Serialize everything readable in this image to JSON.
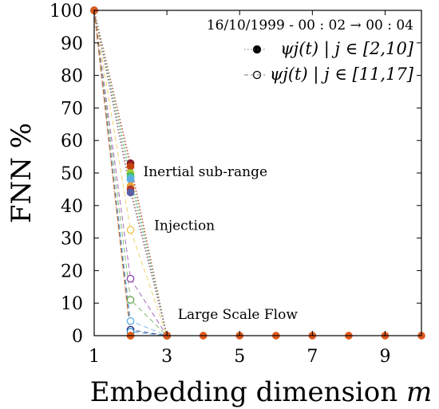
{
  "chart_data": {
    "type": "line",
    "title": "",
    "xlabel": "Embedding dimension",
    "xlabel_var": "m",
    "ylabel": "FNN %",
    "xlim": [
      1,
      10
    ],
    "ylim": [
      0,
      100
    ],
    "x_ticks": [
      1,
      3,
      5,
      7,
      9
    ],
    "y_ticks": [
      0,
      10,
      20,
      30,
      40,
      50,
      60,
      70,
      80,
      90,
      100
    ],
    "grid": false,
    "legend": {
      "placement": "top-right",
      "title": "16/10/1999 - 00 : 02 → 00 : 04",
      "entries": [
        {
          "label": "ψj(t) | j ∈ [2,10]",
          "marker": "filled"
        },
        {
          "label": "ψj(t) | j ∈ [11,17]",
          "marker": "open"
        }
      ]
    },
    "annotations": [
      {
        "text": "Inertial sub-range",
        "x": 2.35,
        "y": 49
      },
      {
        "text": "Injection",
        "x": 2.65,
        "y": 32.5
      },
      {
        "text": "Large Scale Flow",
        "x": 3.3,
        "y": 5.2
      }
    ],
    "series": [
      {
        "group": "filled",
        "color": "#8b1a2b",
        "values": [
          [
            1,
            100
          ],
          [
            2,
            53
          ],
          [
            3,
            0
          ]
        ]
      },
      {
        "group": "filled",
        "color": "#c1440e",
        "values": [
          [
            1,
            100
          ],
          [
            2,
            52
          ],
          [
            3,
            0
          ]
        ]
      },
      {
        "group": "filled",
        "color": "#9acd32",
        "values": [
          [
            1,
            100
          ],
          [
            2,
            50
          ],
          [
            3,
            0
          ]
        ]
      },
      {
        "group": "filled",
        "color": "#3cb371",
        "values": [
          [
            1,
            100
          ],
          [
            2,
            49
          ],
          [
            3,
            0
          ]
        ]
      },
      {
        "group": "filled",
        "color": "#48c9b0",
        "values": [
          [
            1,
            100
          ],
          [
            2,
            48.5
          ],
          [
            3,
            0
          ]
        ]
      },
      {
        "group": "filled",
        "color": "#5dade2",
        "values": [
          [
            1,
            100
          ],
          [
            2,
            48
          ],
          [
            3,
            0
          ]
        ]
      },
      {
        "group": "filled",
        "color": "#e8a33c",
        "values": [
          [
            1,
            100
          ],
          [
            2,
            46
          ],
          [
            3,
            0
          ]
        ]
      },
      {
        "group": "filled",
        "color": "#b03a2e",
        "values": [
          [
            1,
            100
          ],
          [
            2,
            45
          ],
          [
            3,
            0
          ]
        ]
      },
      {
        "group": "filled",
        "color": "#5b5ea6",
        "values": [
          [
            1,
            100
          ],
          [
            2,
            44
          ],
          [
            3,
            0
          ]
        ]
      },
      {
        "group": "open",
        "color": "#e8c84a",
        "values": [
          [
            1,
            100
          ],
          [
            2,
            32.5
          ],
          [
            3,
            0
          ]
        ]
      },
      {
        "group": "open",
        "color": "#8e44ad",
        "values": [
          [
            1,
            100
          ],
          [
            2,
            17.5
          ],
          [
            3,
            0
          ]
        ]
      },
      {
        "group": "open",
        "color": "#6aa84f",
        "values": [
          [
            1,
            100
          ],
          [
            2,
            11
          ],
          [
            3,
            0
          ]
        ]
      },
      {
        "group": "open",
        "color": "#5dade2",
        "values": [
          [
            1,
            100
          ],
          [
            2,
            4.5
          ],
          [
            3,
            0
          ]
        ]
      },
      {
        "group": "open",
        "color": "#1a237e",
        "values": [
          [
            1,
            100
          ],
          [
            2,
            1.8
          ],
          [
            3,
            0
          ]
        ]
      },
      {
        "group": "open",
        "color": "#2e86c1",
        "values": [
          [
            1,
            100
          ],
          [
            2,
            1.2
          ],
          [
            3,
            0
          ]
        ]
      },
      {
        "group": "open",
        "color": "#e67e22",
        "values": [
          [
            1,
            100
          ],
          [
            2,
            0
          ],
          [
            3,
            0
          ]
        ]
      },
      {
        "group": "filled",
        "color": "#e05a1e",
        "values": [
          [
            1,
            100
          ],
          [
            2,
            0
          ],
          [
            3,
            0
          ],
          [
            4,
            0
          ],
          [
            5,
            0
          ],
          [
            6,
            0
          ],
          [
            7,
            0
          ],
          [
            8,
            0
          ],
          [
            9,
            0
          ],
          [
            10,
            0
          ]
        ]
      }
    ]
  }
}
